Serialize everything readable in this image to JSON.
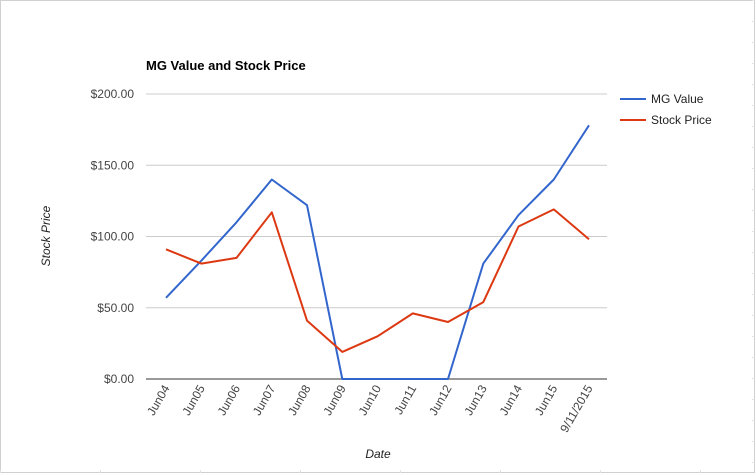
{
  "chart_data": {
    "type": "line",
    "title": "MG Value and Stock Price",
    "xlabel": "Date",
    "ylabel": "Stock Price",
    "categories": [
      "Jun04",
      "Jun05",
      "Jun06",
      "Jun07",
      "Jun08",
      "Jun09",
      "Jun10",
      "Jun11",
      "Jun12",
      "Jun13",
      "Jun14",
      "Jun15",
      "9/11/2015"
    ],
    "ylim": [
      0,
      200
    ],
    "yticks": [
      0,
      50,
      100,
      150,
      200
    ],
    "ytick_labels": [
      "$0.00",
      "$50.00",
      "$100.00",
      "$150.00",
      "$200.00"
    ],
    "grid": true,
    "legend_position": "right",
    "series": [
      {
        "name": "MG Value",
        "color": "#3366cc",
        "values": [
          57,
          83,
          110,
          140,
          122,
          0,
          0,
          0,
          0,
          81,
          115,
          140,
          178
        ]
      },
      {
        "name": "Stock Price",
        "color": "#dc3912",
        "values": [
          91,
          81,
          85,
          117,
          41,
          19,
          30,
          46,
          40,
          54,
          107,
          119,
          98
        ]
      }
    ]
  }
}
